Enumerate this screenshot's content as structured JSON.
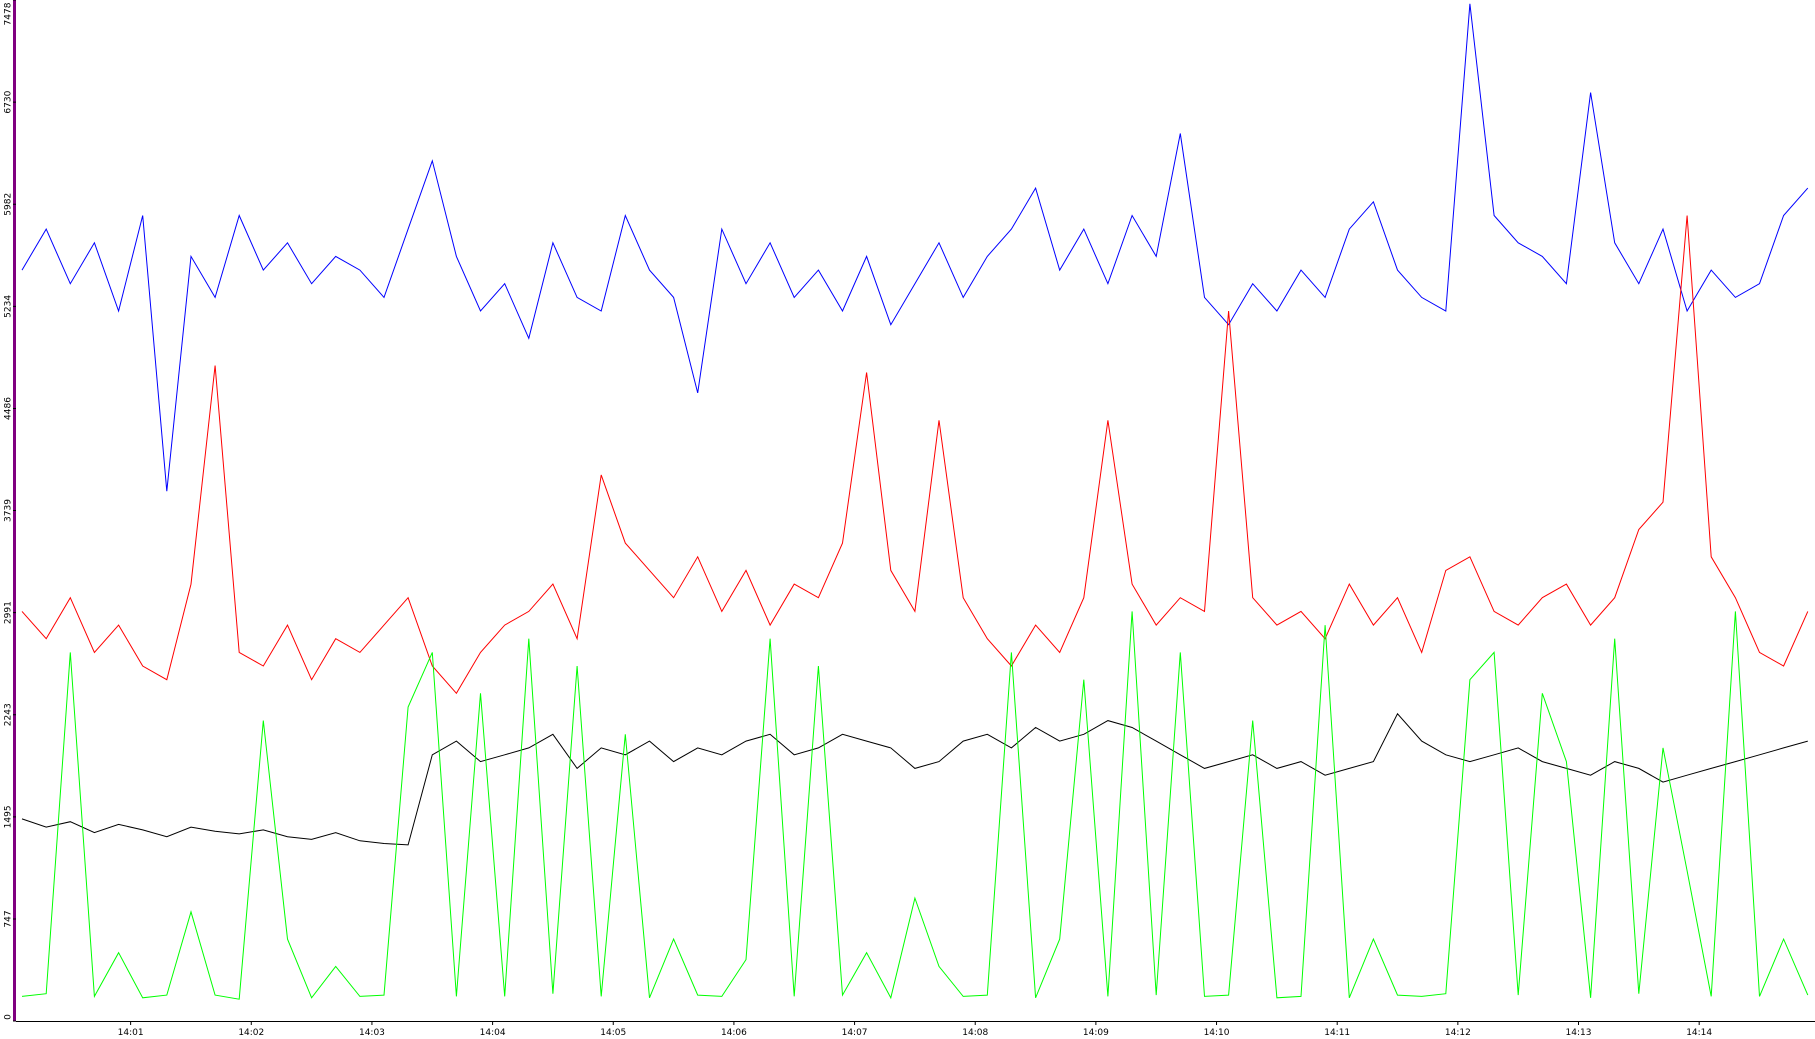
{
  "chart_data": {
    "type": "line",
    "x": [
      0.1,
      0.3,
      0.5,
      0.7,
      0.9,
      1.1,
      1.3,
      1.5,
      1.7,
      1.9,
      2.1,
      2.3,
      2.5,
      2.7,
      2.9,
      3.1,
      3.3,
      3.5,
      3.7,
      3.9,
      4.1,
      4.3,
      4.5,
      4.7,
      4.9,
      5.1,
      5.3,
      5.5,
      5.7,
      5.9,
      6.1,
      6.3,
      6.5,
      6.7,
      6.9,
      7.1,
      7.3,
      7.5,
      7.7,
      7.9,
      8.1,
      8.3,
      8.5,
      8.7,
      8.9,
      9.1,
      9.3,
      9.5,
      9.7,
      9.9,
      10.1,
      10.3,
      10.5,
      10.7,
      10.9,
      11.1,
      11.3,
      11.5,
      11.7,
      11.9,
      12.1,
      12.3,
      12.5,
      12.7,
      12.9,
      13.1,
      13.3,
      13.5,
      13.7,
      13.9,
      14.1,
      14.3,
      14.5,
      14.7,
      14.9
    ],
    "series": [
      {
        "color": "#0000ff",
        "values": [
          5500,
          5800,
          5400,
          5700,
          5200,
          5900,
          3880,
          5600,
          5300,
          5900,
          5500,
          5700,
          5400,
          5600,
          5500,
          5300,
          5800,
          6300,
          5600,
          5200,
          5400,
          5000,
          5700,
          5300,
          5200,
          5900,
          5500,
          5300,
          4600,
          5800,
          5400,
          5700,
          5300,
          5500,
          5200,
          5600,
          5100,
          5400,
          5700,
          5300,
          5600,
          5800,
          6100,
          5500,
          5800,
          5400,
          5900,
          5600,
          6500,
          5300,
          5100,
          5400,
          5200,
          5500,
          5300,
          5800,
          6000,
          5500,
          5300,
          5200,
          7450,
          5900,
          5700,
          5600,
          5400,
          6800,
          5700,
          5400,
          5800,
          5200,
          5500,
          5300,
          5400,
          5900,
          6100
        ]
      },
      {
        "color": "#ff0000",
        "values": [
          3000,
          2800,
          3100,
          2700,
          2900,
          2600,
          2500,
          3200,
          4800,
          2700,
          2600,
          2900,
          2500,
          2800,
          2700,
          2900,
          3100,
          2600,
          2400,
          2700,
          2900,
          3000,
          3200,
          2800,
          4000,
          3500,
          3300,
          3100,
          3400,
          3000,
          3300,
          2900,
          3200,
          3100,
          3500,
          4750,
          3300,
          3000,
          4400,
          3100,
          2800,
          2600,
          2900,
          2700,
          3100,
          4400,
          3200,
          2900,
          3100,
          3000,
          5200,
          3100,
          2900,
          3000,
          2800,
          3200,
          2900,
          3100,
          2700,
          3300,
          3400,
          3000,
          2900,
          3100,
          3200,
          2900,
          3100,
          3600,
          3800,
          5900,
          3400,
          3100,
          2700,
          2600,
          3000
        ]
      },
      {
        "color": "#000000",
        "values": [
          1480,
          1420,
          1460,
          1380,
          1440,
          1400,
          1350,
          1420,
          1390,
          1370,
          1400,
          1350,
          1330,
          1380,
          1320,
          1300,
          1290,
          1950,
          2050,
          1900,
          1950,
          2000,
          2100,
          1850,
          2000,
          1950,
          2050,
          1900,
          2000,
          1950,
          2050,
          2100,
          1950,
          2000,
          2100,
          2050,
          2000,
          1850,
          1900,
          2050,
          2100,
          2000,
          2150,
          2050,
          2100,
          2200,
          2150,
          2050,
          1950,
          1850,
          1900,
          1950,
          1850,
          1900,
          1800,
          1850,
          1900,
          2250,
          2050,
          1950,
          1900,
          1950,
          2000,
          1900,
          1850,
          1800,
          1900,
          1850,
          1750,
          1800,
          1850,
          1900,
          1950,
          2000,
          2050
        ]
      },
      {
        "color": "#00ff00",
        "values": [
          180,
          200,
          2700,
          180,
          500,
          170,
          190,
          800,
          190,
          160,
          2200,
          600,
          170,
          400,
          180,
          190,
          2300,
          2700,
          180,
          2400,
          180,
          2800,
          200,
          2600,
          180,
          2100,
          170,
          600,
          190,
          180,
          450,
          2800,
          180,
          2600,
          190,
          500,
          170,
          900,
          400,
          180,
          190,
          2700,
          170,
          600,
          2500,
          180,
          3000,
          190,
          2700,
          180,
          190,
          2200,
          170,
          180,
          2900,
          170,
          600,
          190,
          180,
          200,
          2500,
          2700,
          190,
          2400,
          1900,
          170,
          2800,
          200,
          2000,
          1100,
          180,
          3000,
          180,
          600,
          190
        ]
      }
    ],
    "xlim": [
      0.05,
      14.96
    ],
    "xticks": [
      {
        "value": 1,
        "label": "14:01"
      },
      {
        "value": 2,
        "label": "14:02"
      },
      {
        "value": 3,
        "label": "14:03"
      },
      {
        "value": 4,
        "label": "14:04"
      },
      {
        "value": 5,
        "label": "14:05"
      },
      {
        "value": 6,
        "label": "14:06"
      },
      {
        "value": 7,
        "label": "14:07"
      },
      {
        "value": 8,
        "label": "14:08"
      },
      {
        "value": 9,
        "label": "14:09"
      },
      {
        "value": 10,
        "label": "14:10"
      },
      {
        "value": 11,
        "label": "14:11"
      },
      {
        "value": 12,
        "label": "14:12"
      },
      {
        "value": 13,
        "label": "14:13"
      },
      {
        "value": 14,
        "label": "14:14"
      }
    ],
    "ylim": [
      0,
      7478
    ],
    "yticks": [
      0,
      747,
      1495,
      2243,
      2991,
      3739,
      4486,
      5234,
      5982,
      6730,
      7478
    ]
  }
}
